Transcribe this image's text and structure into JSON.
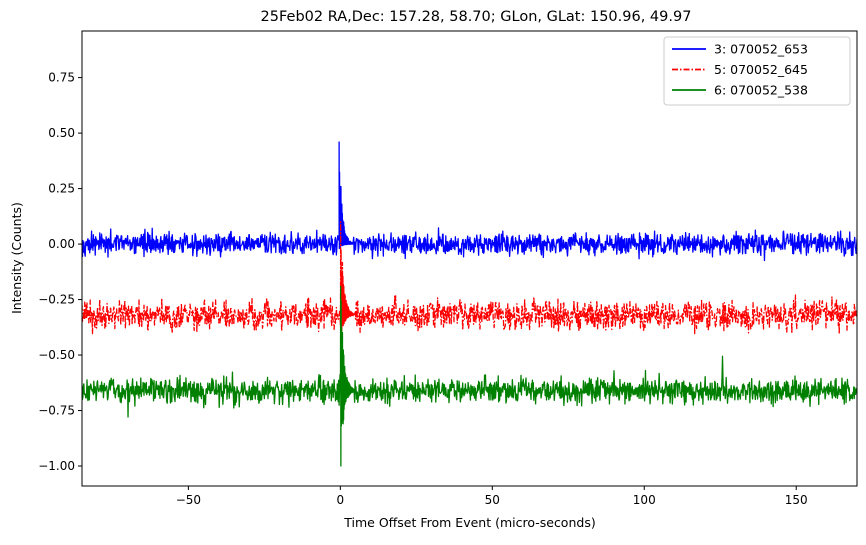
{
  "chart_data": {
    "type": "line",
    "title": "25Feb02 RA,Dec:  157.28,  58.70; GLon, GLat:  150.96,  49.97",
    "xlabel": "Time Offset From Event (micro-seconds)",
    "ylabel": "Intensity (Counts)",
    "xlim": [
      -85,
      170
    ],
    "ylim": [
      -1.09,
      0.96
    ],
    "x_ticks": [
      -50,
      0,
      50,
      100,
      150
    ],
    "x_tick_labels": [
      "−50",
      "0",
      "50",
      "100",
      "150"
    ],
    "y_ticks": [
      -1.0,
      -0.75,
      -0.5,
      -0.25,
      0.0,
      0.25,
      0.5,
      0.75
    ],
    "y_tick_labels": [
      "−1.00",
      "−0.75",
      "−0.50",
      "−0.25",
      "0.00",
      "0.25",
      "0.50",
      "0.75"
    ],
    "grid": false,
    "legend_position": "top-right",
    "series": [
      {
        "name": "3: 070052_653",
        "color": "#0000ff",
        "style": "solid",
        "baseline": 0.0,
        "noise_amplitude": 0.03,
        "spike": {
          "x": 0.0,
          "peak": 0.46,
          "min": -0.02
        }
      },
      {
        "name": "5: 070052_645",
        "color": "#ff0000",
        "style": "dashdot",
        "baseline": -0.32,
        "noise_amplitude": 0.04,
        "spike": {
          "x": 0.5,
          "peak": 0.1,
          "min": -0.45
        }
      },
      {
        "name": "6: 070052_538",
        "color": "#008000",
        "style": "solid",
        "baseline": -0.66,
        "noise_amplitude": 0.035,
        "spike": {
          "x": 0.5,
          "peak": -0.19,
          "min": -1.0
        }
      }
    ]
  }
}
